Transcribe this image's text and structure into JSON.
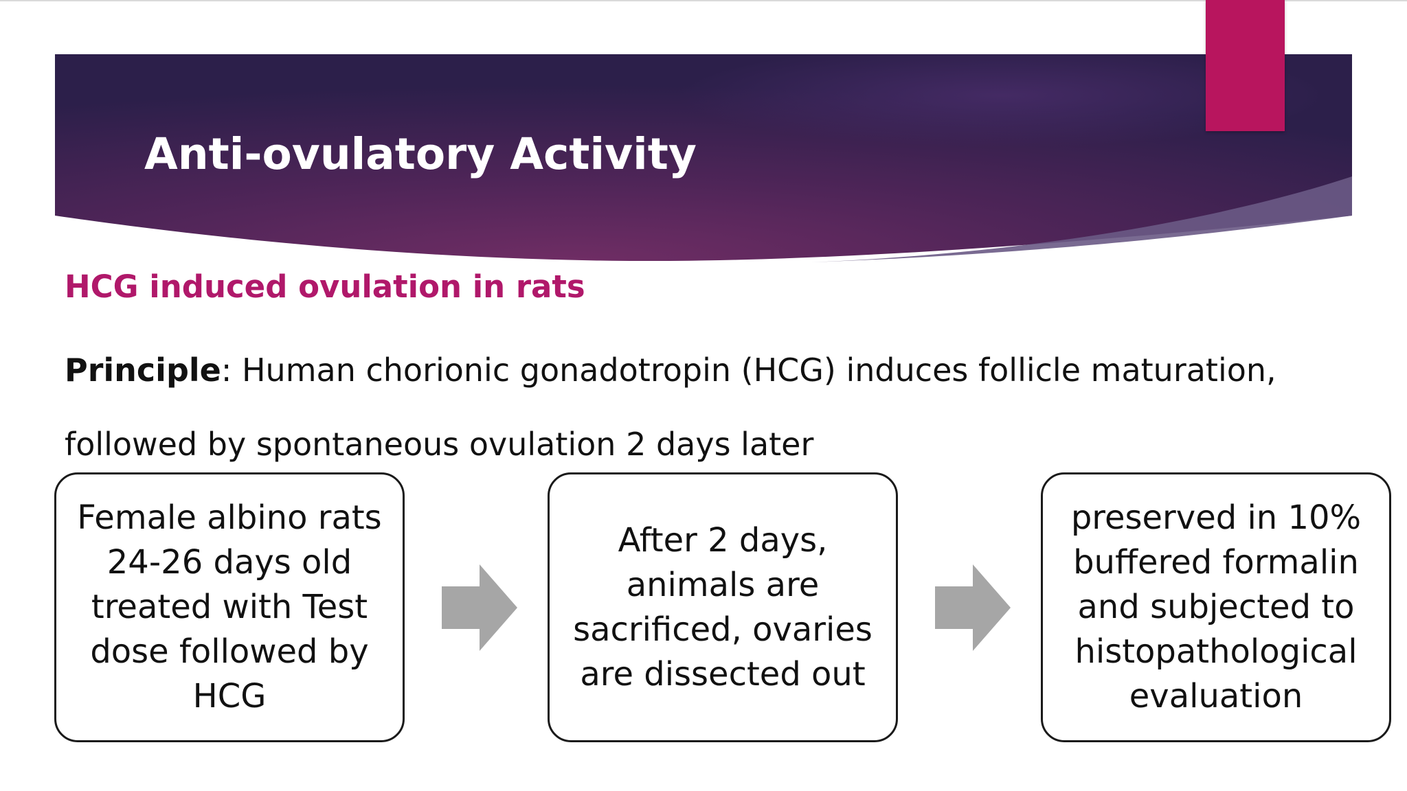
{
  "slide": {
    "title": "Anti-ovulatory Activity",
    "subtitle": "HCG induced ovulation in rats",
    "principle_label": "Principle",
    "principle_text": ": Human chorionic gonadotropin (HCG) induces follicle maturation, followed by spontaneous ovulation 2 days later"
  },
  "flow": [
    {
      "text": "Female albino rats 24-26 days old treated with Test dose followed by HCG"
    },
    {
      "text": "After 2 days, animals are sacrificed, ovaries are dissected out"
    },
    {
      "text": "preserved in 10% buffered formalin and subjected to histopathological evaluation"
    }
  ],
  "colors": {
    "banner_dark": "#2f2150",
    "banner_mid": "#6b2c63",
    "accent": "#b8155e",
    "subtitle": "#b0186a",
    "arrow": "#a6a6a6"
  }
}
